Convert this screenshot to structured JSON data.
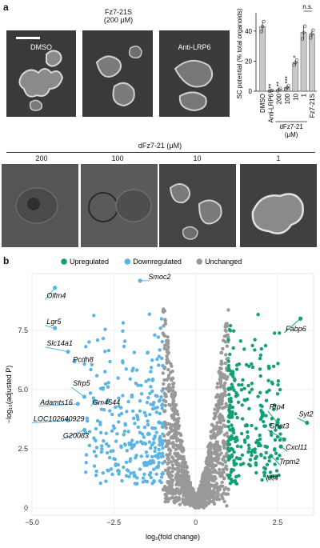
{
  "panel_a": {
    "label": "a",
    "top_images": [
      {
        "label": "DMSO",
        "overlay": true
      },
      {
        "label": "Fz7-21S\n(200 μM)",
        "overlay": false
      },
      {
        "label": "Anti-LRP6",
        "overlay": false
      }
    ],
    "dose_title": "dFz7-21 (μM)",
    "bottom_images": [
      {
        "label": "200"
      },
      {
        "label": "100"
      },
      {
        "label": "10"
      },
      {
        "label": "1"
      }
    ]
  },
  "panel_b": {
    "label": "b"
  },
  "chart_data": [
    {
      "type": "bar",
      "ylabel": "SC potential (% total organoids)",
      "ylim": [
        0,
        50
      ],
      "yticks": [
        0,
        20,
        40
      ],
      "categories": [
        "DMSO",
        "Anti-LRP6",
        "200",
        "100",
        "10",
        "1",
        "Fz7-21S"
      ],
      "group_label": "dFz7-21\n(μM)",
      "values": [
        43,
        0.3,
        1,
        2.5,
        19,
        39,
        38
      ],
      "errors": [
        4,
        0.3,
        1,
        1.5,
        2,
        5,
        3
      ],
      "significance": [
        "",
        "**",
        "**",
        "***",
        "*",
        "n.s.",
        ""
      ],
      "bar_color": "#c8c8c8"
    },
    {
      "type": "scatter",
      "xlabel": "log₂(fold change)",
      "ylabel": "−log₁₀(adjusted P)",
      "xlim": [
        -5,
        3.6
      ],
      "ylim": [
        -0.3,
        9.9
      ],
      "xticks": [
        -5.0,
        -2.5,
        0,
        2.5
      ],
      "xtick_labels": [
        "−5.0",
        "−2.5",
        "0",
        "2.5"
      ],
      "yticks": [
        0,
        2.5,
        5.0,
        7.5
      ],
      "yticks_labels": [
        "0",
        "2.5",
        "5.0",
        "7.5"
      ],
      "legend": [
        {
          "name": "Upregulated",
          "color": "#13a077"
        },
        {
          "name": "Downregulated",
          "color": "#5ab4e5"
        },
        {
          "name": "Unchanged",
          "color": "#999999"
        }
      ],
      "highlighted_points": [
        {
          "gene": "Smoc2",
          "x": -1.7,
          "y": 9.6,
          "lx": -1.4,
          "ly": 9.6
        },
        {
          "gene": "Olfm4",
          "x": -4.3,
          "y": 9.3,
          "lx": -4.6,
          "ly": 8.8
        },
        {
          "gene": "Lgr5",
          "x": -4.3,
          "y": 7.6,
          "lx": -4.6,
          "ly": 7.7
        },
        {
          "gene": "Slc14a1",
          "x": -3.9,
          "y": 6.6,
          "lx": -4.6,
          "ly": 6.8
        },
        {
          "gene": "Pcdh8",
          "x": -3.7,
          "y": 6.2,
          "lx": -3.7,
          "ly": 6.1
        },
        {
          "gene": "Sfrp5",
          "x": -3.4,
          "y": 4.7,
          "lx": -3.8,
          "ly": 5.1
        },
        {
          "gene": "Adamts16",
          "x": -3.6,
          "y": 4.4,
          "lx": -4.8,
          "ly": 4.3
        },
        {
          "gene": "Gm4544",
          "x": -3.1,
          "y": 4.5,
          "lx": -3.2,
          "ly": 4.3
        },
        {
          "gene": "LOC102640929",
          "x": -3.9,
          "y": 3.7,
          "lx": -5.0,
          "ly": 3.6
        },
        {
          "gene": "G20083",
          "x": -3.4,
          "y": 3.3,
          "lx": -4.1,
          "ly": 2.9
        },
        {
          "gene": "Fabp6",
          "x": 3.2,
          "y": 8.0,
          "lx": 2.7,
          "ly": 7.4
        },
        {
          "gene": "Rtp4",
          "x": 2.5,
          "y": 3.6,
          "lx": 2.2,
          "ly": 4.1
        },
        {
          "gene": "Syt2",
          "x": 3.4,
          "y": 3.6,
          "lx": 3.1,
          "ly": 3.8
        },
        {
          "gene": "Gnat3",
          "x": 2.7,
          "y": 2.9,
          "lx": 2.2,
          "ly": 3.3
        },
        {
          "gene": "Cxcl11",
          "x": 2.6,
          "y": 2.6,
          "lx": 2.8,
          "ly": 2.4
        },
        {
          "gene": "Trpm2",
          "x": 2.3,
          "y": 2.2,
          "lx": 2.6,
          "ly": 1.8
        },
        {
          "gene": "Mt4",
          "x": 2.1,
          "y": 1.5,
          "lx": 2.2,
          "ly": 1.1
        }
      ]
    }
  ]
}
